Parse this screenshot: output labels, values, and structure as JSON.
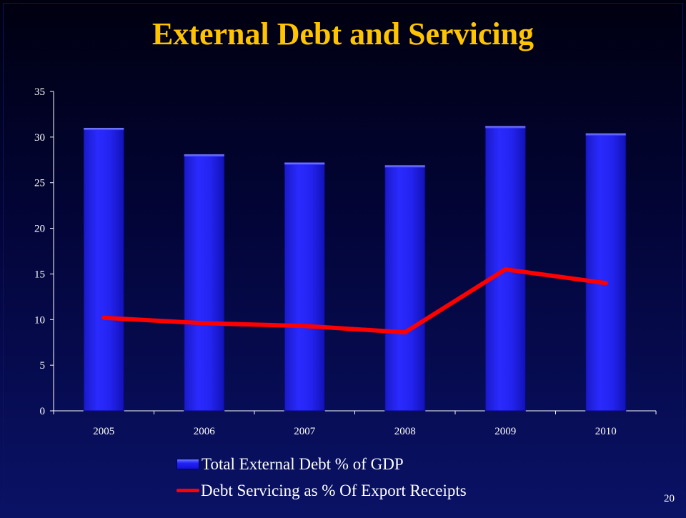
{
  "slide": {
    "title": "External Debt and Servicing",
    "page_number": "20",
    "colors": {
      "title": "#ffc400",
      "bar": "#2222f5",
      "line": "#ff0000",
      "text": "#ffffff"
    }
  },
  "chart_data": {
    "type": "bar",
    "title": "External Debt and Servicing",
    "categories": [
      "2005",
      "2006",
      "2007",
      "2008",
      "2009",
      "2010"
    ],
    "series": [
      {
        "name": "Total External Debt % of GDP",
        "type": "bar",
        "values": [
          31.0,
          28.1,
          27.2,
          26.9,
          31.2,
          30.4
        ]
      },
      {
        "name": "Debt Servicing as % Of Export Receipts",
        "type": "line",
        "values": [
          10.2,
          9.6,
          9.3,
          8.6,
          15.5,
          14.0
        ]
      }
    ],
    "yticks": [
      "0",
      "5",
      "10",
      "15",
      "20",
      "25",
      "30",
      "35"
    ],
    "ylim": [
      0,
      35
    ],
    "xlabel": "",
    "ylabel": "",
    "grid": false,
    "legend": "bottom"
  }
}
